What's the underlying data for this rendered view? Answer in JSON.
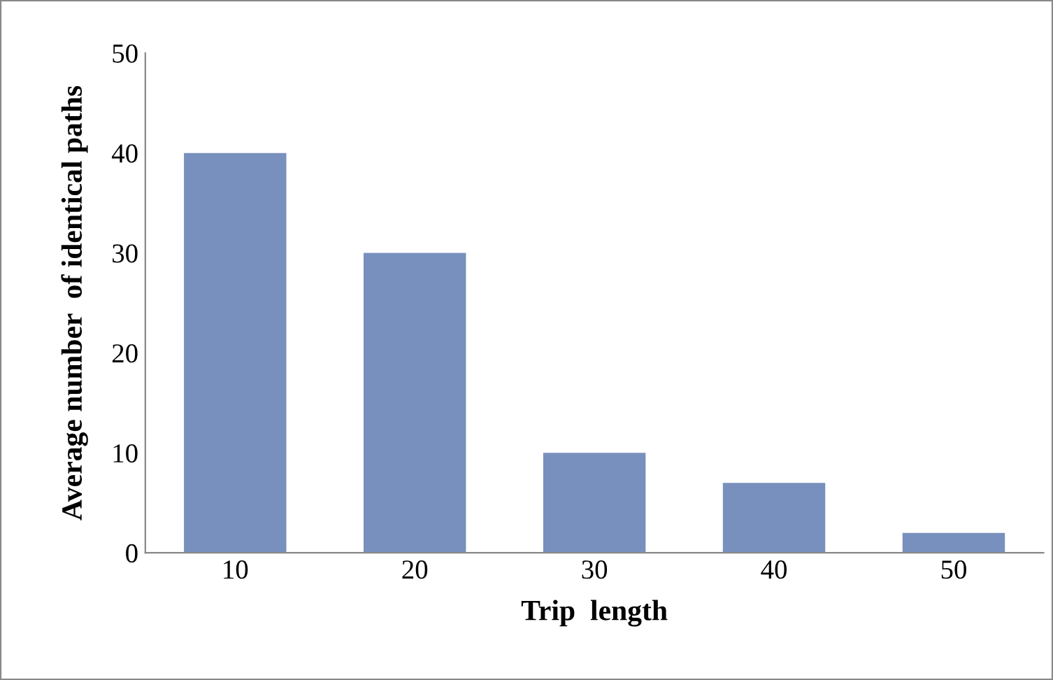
{
  "chart_data": {
    "type": "bar",
    "xlabel": "Trip  length",
    "ylabel": "Average number  of identical paths",
    "categories": [
      "10",
      "20",
      "30",
      "40",
      "50"
    ],
    "values": [
      40,
      30,
      10,
      7,
      2
    ],
    "color": "#7890bd",
    "ylim": [
      0,
      50
    ],
    "yticks": [
      0,
      10,
      20,
      30,
      40,
      50
    ],
    "grid": false,
    "legend": false
  }
}
